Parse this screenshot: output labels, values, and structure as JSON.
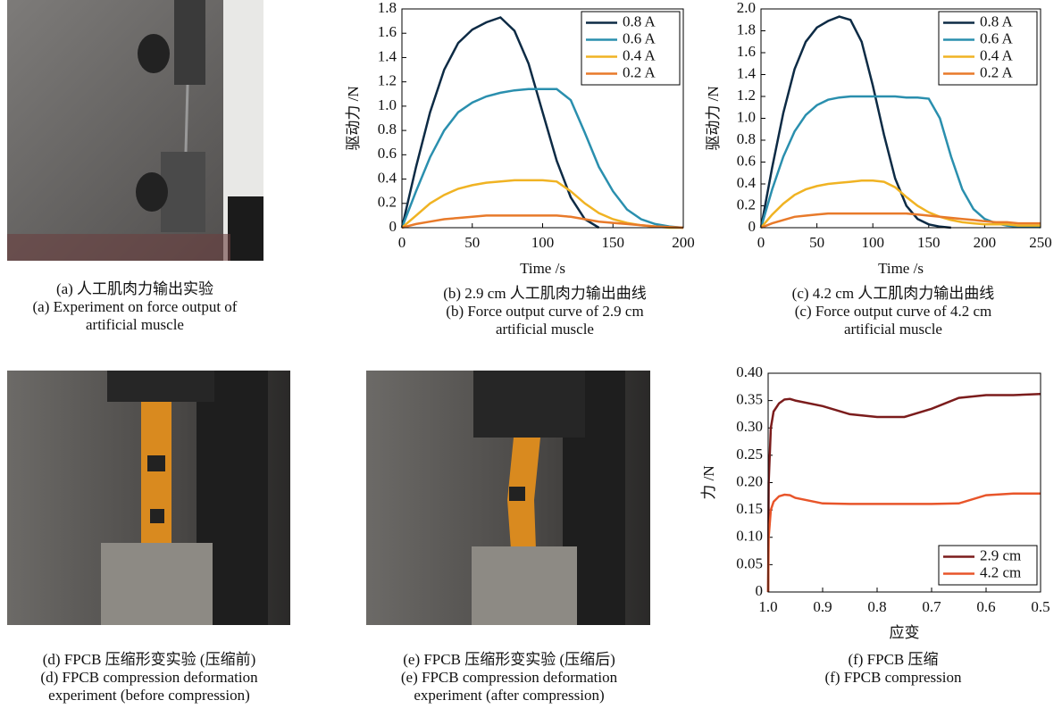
{
  "chart_data": [
    {
      "type": "line",
      "ylabel": "驱动力 /N",
      "xlabel": "Time /s",
      "xlim": [
        0,
        200
      ],
      "ylim": [
        0,
        1.8
      ],
      "xticks": [
        0,
        50,
        100,
        150,
        200
      ],
      "yticks": [
        0,
        0.2,
        0.4,
        0.6,
        0.8,
        {
          "value": 1,
          "label": "1.0"
        },
        1.2,
        1.4,
        1.6,
        1.8
      ],
      "legend": "upper right",
      "series": [
        {
          "name": "0.8 A",
          "color": "#0d2b45",
          "x": [
            0,
            10,
            20,
            30,
            40,
            50,
            60,
            70,
            80,
            90,
            100,
            110,
            120,
            130,
            140
          ],
          "values": [
            0,
            0.5,
            0.95,
            1.3,
            1.52,
            1.63,
            1.69,
            1.73,
            1.62,
            1.35,
            0.95,
            0.55,
            0.25,
            0.07,
            0
          ]
        },
        {
          "name": "0.6 A",
          "color": "#2a8fae",
          "x": [
            0,
            10,
            20,
            30,
            40,
            50,
            60,
            70,
            80,
            90,
            100,
            110,
            120,
            130,
            140,
            150,
            160,
            170,
            180,
            190,
            200
          ],
          "values": [
            0,
            0.3,
            0.58,
            0.8,
            0.95,
            1.03,
            1.08,
            1.11,
            1.13,
            1.14,
            1.14,
            1.14,
            1.05,
            0.78,
            0.5,
            0.3,
            0.15,
            0.07,
            0.03,
            0.01,
            0
          ]
        },
        {
          "name": "0.4 A",
          "color": "#f0b323",
          "x": [
            0,
            10,
            20,
            30,
            40,
            50,
            60,
            70,
            80,
            90,
            100,
            110,
            120,
            130,
            140,
            150,
            160,
            170,
            180,
            190,
            200
          ],
          "values": [
            0,
            0.1,
            0.2,
            0.27,
            0.32,
            0.35,
            0.37,
            0.38,
            0.39,
            0.39,
            0.39,
            0.38,
            0.3,
            0.2,
            0.12,
            0.07,
            0.04,
            0.02,
            0.01,
            0,
            0
          ]
        },
        {
          "name": "0.2 A",
          "color": "#e87a2a",
          "x": [
            0,
            10,
            20,
            30,
            40,
            50,
            60,
            70,
            80,
            90,
            100,
            110,
            120,
            130,
            140,
            150,
            160,
            170,
            180,
            190,
            200
          ],
          "values": [
            0,
            0.03,
            0.05,
            0.07,
            0.08,
            0.09,
            0.1,
            0.1,
            0.1,
            0.1,
            0.1,
            0.1,
            0.09,
            0.07,
            0.05,
            0.04,
            0.03,
            0.02,
            0.01,
            0.005,
            0
          ]
        }
      ]
    },
    {
      "type": "line",
      "ylabel": "驱动力 /N",
      "xlabel": "Time /s",
      "xlim": [
        0,
        250
      ],
      "ylim": [
        0,
        2
      ],
      "xticks": [
        0,
        50,
        100,
        150,
        200,
        250
      ],
      "yticks": [
        0,
        0.2,
        0.4,
        0.6,
        0.8,
        {
          "value": 1,
          "label": "1.0"
        },
        1.2,
        1.4,
        1.6,
        1.8,
        {
          "value": 2,
          "label": "2.0"
        }
      ],
      "legend": "upper right",
      "series": [
        {
          "name": "0.8 A",
          "color": "#0d2b45",
          "x": [
            0,
            10,
            20,
            30,
            40,
            50,
            60,
            70,
            80,
            90,
            100,
            110,
            120,
            130,
            140,
            150,
            160,
            170
          ],
          "values": [
            0,
            0.55,
            1.05,
            1.45,
            1.7,
            1.83,
            1.89,
            1.93,
            1.9,
            1.7,
            1.3,
            0.85,
            0.45,
            0.2,
            0.08,
            0.03,
            0.01,
            0
          ]
        },
        {
          "name": "0.6 A",
          "color": "#2a8fae",
          "x": [
            0,
            10,
            20,
            30,
            40,
            50,
            60,
            70,
            80,
            90,
            100,
            110,
            120,
            130,
            140,
            150,
            160,
            170,
            180,
            190,
            200,
            210,
            220,
            230,
            240,
            250
          ],
          "values": [
            0,
            0.35,
            0.65,
            0.88,
            1.03,
            1.12,
            1.17,
            1.19,
            1.2,
            1.2,
            1.2,
            1.2,
            1.2,
            1.19,
            1.19,
            1.18,
            1.0,
            0.65,
            0.35,
            0.17,
            0.08,
            0.04,
            0.02,
            0.01,
            0.01,
            0.005
          ]
        },
        {
          "name": "0.4 A",
          "color": "#f0b323",
          "x": [
            0,
            10,
            20,
            30,
            40,
            50,
            60,
            70,
            80,
            90,
            100,
            110,
            120,
            130,
            140,
            150,
            160,
            170,
            180,
            190,
            200,
            210,
            220,
            230,
            240,
            250
          ],
          "values": [
            0,
            0.12,
            0.22,
            0.3,
            0.35,
            0.38,
            0.4,
            0.41,
            0.42,
            0.43,
            0.43,
            0.42,
            0.37,
            0.28,
            0.2,
            0.14,
            0.1,
            0.07,
            0.05,
            0.04,
            0.03,
            0.03,
            0.03,
            0.02,
            0.02,
            0.02
          ]
        },
        {
          "name": "0.2 A",
          "color": "#e87a2a",
          "x": [
            0,
            10,
            20,
            30,
            40,
            50,
            60,
            70,
            80,
            90,
            100,
            110,
            120,
            130,
            140,
            150,
            160,
            170,
            180,
            190,
            200,
            210,
            220,
            230,
            240,
            250
          ],
          "values": [
            0,
            0.04,
            0.07,
            0.1,
            0.11,
            0.12,
            0.13,
            0.13,
            0.13,
            0.13,
            0.13,
            0.13,
            0.13,
            0.13,
            0.12,
            0.11,
            0.1,
            0.09,
            0.08,
            0.07,
            0.06,
            0.05,
            0.05,
            0.04,
            0.04,
            0.04
          ]
        }
      ]
    },
    {
      "type": "line",
      "ylabel": "力 /N",
      "xlabel": "应变",
      "xlim": [
        1,
        0.5
      ],
      "ylim": [
        0,
        0.4
      ],
      "xticks": [
        {
          "value": 1,
          "label": "1.0"
        },
        0.9,
        0.8,
        0.7,
        0.6,
        0.5
      ],
      "yticks": [
        0,
        {
          "value": 0.05,
          "label": "0.05"
        },
        {
          "value": 0.1,
          "label": "0.10"
        },
        {
          "value": 0.15,
          "label": "0.15"
        },
        {
          "value": 0.2,
          "label": "0.20"
        },
        {
          "value": 0.25,
          "label": "0.25"
        },
        {
          "value": 0.3,
          "label": "0.30"
        },
        {
          "value": 0.35,
          "label": "0.35"
        },
        {
          "value": 0.4,
          "label": "0.40"
        }
      ],
      "legend": "lower right",
      "series": [
        {
          "name": "2.9 cm",
          "color": "#7b1c1c",
          "x": [
            1,
            0.999,
            0.995,
            0.99,
            0.98,
            0.97,
            0.96,
            0.95,
            0.9,
            0.85,
            0.8,
            0.75,
            0.7,
            0.65,
            0.6,
            0.55,
            0.5
          ],
          "values": [
            0,
            0.2,
            0.3,
            0.33,
            0.345,
            0.352,
            0.353,
            0.35,
            0.34,
            0.325,
            0.32,
            0.32,
            0.335,
            0.355,
            0.36,
            0.36,
            0.362
          ]
        },
        {
          "name": "4.2 cm",
          "color": "#e8552a",
          "x": [
            1,
            0.999,
            0.995,
            0.99,
            0.98,
            0.97,
            0.96,
            0.95,
            0.9,
            0.85,
            0.8,
            0.75,
            0.7,
            0.65,
            0.6,
            0.55,
            0.5
          ],
          "values": [
            0,
            0.1,
            0.15,
            0.165,
            0.175,
            0.178,
            0.177,
            0.172,
            0.162,
            0.161,
            0.161,
            0.161,
            0.161,
            0.162,
            0.177,
            0.18,
            0.18
          ]
        }
      ]
    }
  ],
  "captions": [
    [
      "(a) 人工肌肉力输出实验",
      "(a) Experiment on force output of",
      "artificial muscle"
    ],
    [
      "(b) 2.9 cm 人工肌肉力输出曲线",
      "(b) Force output curve of 2.9 cm",
      "artificial muscle"
    ],
    [
      "(c) 4.2 cm 人工肌肉力输出曲线",
      "(c) Force output curve of 4.2 cm",
      "artificial muscle"
    ],
    [
      "(d) FPCB 压缩形变实验 (压缩前)",
      "(d) FPCB compression deformation",
      "experiment (before compression)"
    ],
    [
      "(e) FPCB 压缩形变实验 (压缩后)",
      "(e) FPCB compression deformation",
      "experiment (after compression)"
    ],
    [
      "(f) FPCB 压缩",
      "(f) FPCB compression"
    ]
  ]
}
